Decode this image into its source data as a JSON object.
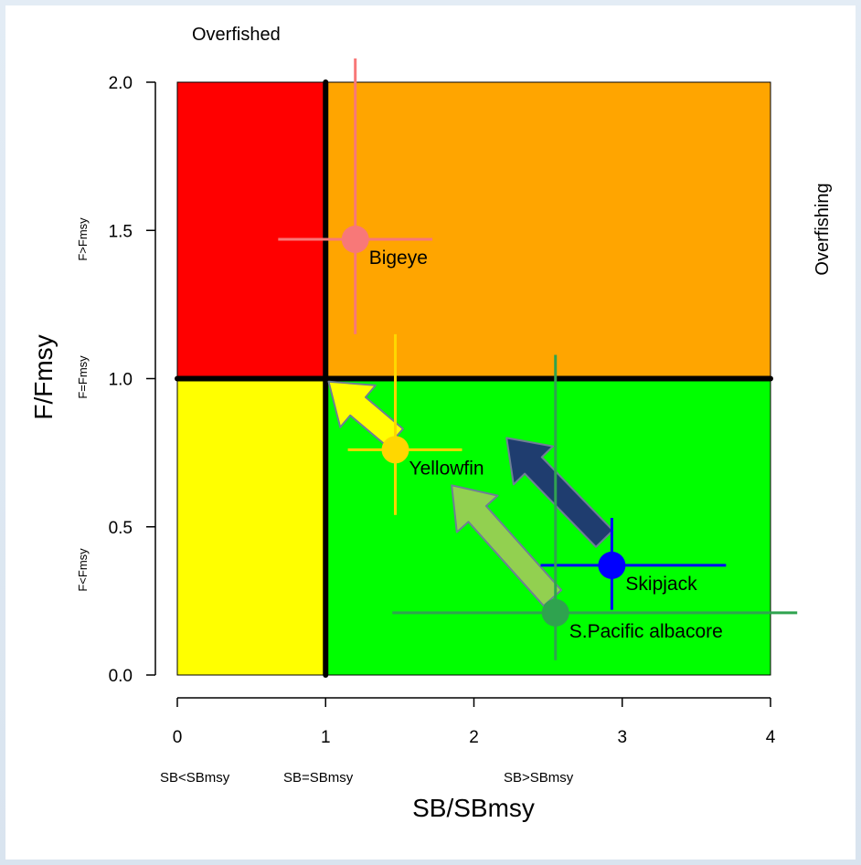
{
  "chart_data": {
    "type": "scatter",
    "title": "",
    "xlabel": "SB/SBmsy",
    "ylabel": "F/Fmsy",
    "xlim": [
      0,
      4
    ],
    "ylim": [
      0,
      2
    ],
    "x_ticks": [
      "0",
      "1",
      "2",
      "3",
      "4"
    ],
    "y_ticks": [
      "0.0",
      "0.5",
      "1.0",
      "1.5",
      "2.0"
    ],
    "reference_lines": {
      "x": 1,
      "y": 1
    },
    "quadrants": [
      {
        "name": "overfished-overfishing",
        "color": "#ff0000",
        "x": [
          0,
          1
        ],
        "y": [
          1,
          2
        ]
      },
      {
        "name": "overfishing",
        "color": "#ffa500",
        "x": [
          1,
          4
        ],
        "y": [
          1,
          2
        ]
      },
      {
        "name": "overfished",
        "color": "#ffff00",
        "x": [
          0,
          1
        ],
        "y": [
          0,
          1
        ]
      },
      {
        "name": "healthy",
        "color": "#00ff00",
        "x": [
          1,
          4
        ],
        "y": [
          0,
          1
        ]
      }
    ],
    "corner_labels": {
      "top": "Overfished",
      "right": "Overfishing"
    },
    "y_zone_labels": [
      "F>Fmsy",
      "F=Fmsy",
      "F<Fmsy"
    ],
    "x_zone_labels": [
      "SB<SBmsy",
      "SB=SBmsy",
      "SB>SBmsy"
    ],
    "series": [
      {
        "name": "Bigeye",
        "x": 1.2,
        "y": 1.47,
        "x_range": [
          0.68,
          1.72
        ],
        "y_range": [
          1.15,
          2.08
        ],
        "color": "#f87878"
      },
      {
        "name": "Yellowfin",
        "x": 1.47,
        "y": 0.76,
        "x_range": [
          1.15,
          1.92
        ],
        "y_range": [
          0.54,
          1.15
        ],
        "color": "#ffd700"
      },
      {
        "name": "Skipjack",
        "x": 2.93,
        "y": 0.37,
        "x_range": [
          2.45,
          3.7
        ],
        "y_range": [
          0.22,
          0.53
        ],
        "color": "#0000ff"
      },
      {
        "name": "S.Pacific albacore",
        "x": 2.55,
        "y": 0.21,
        "x_range": [
          1.45,
          4.18
        ],
        "y_range": [
          0.05,
          1.08
        ],
        "color": "#2fa34f"
      }
    ],
    "arrows": [
      {
        "name": "yellowfin-trend",
        "from": [
          1.47,
          0.8
        ],
        "to": [
          1.02,
          0.99
        ],
        "color": "#ffff00"
      },
      {
        "name": "albacore-trend",
        "from": [
          2.53,
          0.26
        ],
        "to": [
          1.85,
          0.64
        ],
        "color": "#92d050"
      },
      {
        "name": "skipjack-trend",
        "from": [
          2.88,
          0.46
        ],
        "to": [
          2.22,
          0.8
        ],
        "color": "#1f3d6f"
      }
    ]
  }
}
